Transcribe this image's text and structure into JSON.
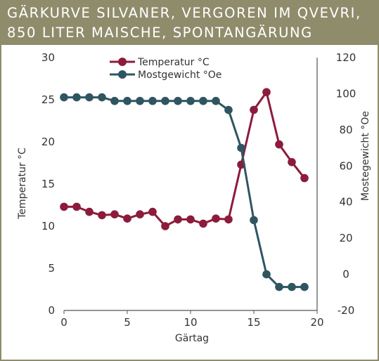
{
  "title": {
    "line1": "GÄRKURVE SILVANER, VERGOREN IM QVEVRI,",
    "line2": "850 LITER MAISCHE, SPONTANGÄRUNG"
  },
  "colors": {
    "band": "#8f8c6c",
    "temperature": "#8c1b3c",
    "mostgewicht": "#2f5561",
    "axis": "#555555"
  },
  "chart_data": {
    "type": "line",
    "xlabel": "Gärtag",
    "ylabel_left": "Temperatur °C",
    "ylabel_right": "Mostegewicht °Oe",
    "xlim": [
      0,
      20
    ],
    "ylim_left": [
      0,
      30
    ],
    "ylim_right": [
      -20,
      120
    ],
    "x_ticks": [
      "0",
      "5",
      "10",
      "15",
      "20"
    ],
    "y_left_ticks": [
      "0",
      "5",
      "10",
      "15",
      "20",
      "25",
      "30"
    ],
    "y_right_ticks": [
      "-20",
      "0",
      "20",
      "40",
      "60",
      "80",
      "100",
      "120"
    ],
    "grid": false,
    "legend_position": "top-left",
    "series": [
      {
        "name": "Temperatur °C",
        "axis": "left",
        "x": [
          0,
          1,
          2,
          3,
          4,
          5,
          6,
          7,
          8,
          9,
          10,
          11,
          12,
          13,
          14,
          15,
          16,
          17,
          18,
          19
        ],
        "y": [
          12.3,
          12.3,
          11.7,
          11.3,
          11.4,
          10.9,
          11.4,
          11.7,
          10.0,
          10.8,
          10.8,
          10.3,
          10.9,
          10.8,
          17.3,
          23.8,
          25.9,
          19.7,
          17.6,
          15.7
        ]
      },
      {
        "name": "Mostgewicht °Oe",
        "axis": "right",
        "x": [
          0,
          1,
          2,
          3,
          4,
          5,
          6,
          7,
          8,
          9,
          10,
          11,
          12,
          13,
          14,
          15,
          16,
          17,
          18,
          19
        ],
        "y": [
          98,
          98,
          98,
          98,
          96,
          96,
          96,
          96,
          96,
          96,
          96,
          96,
          96,
          91,
          70,
          30,
          0,
          -7,
          -7,
          -7
        ]
      }
    ]
  }
}
